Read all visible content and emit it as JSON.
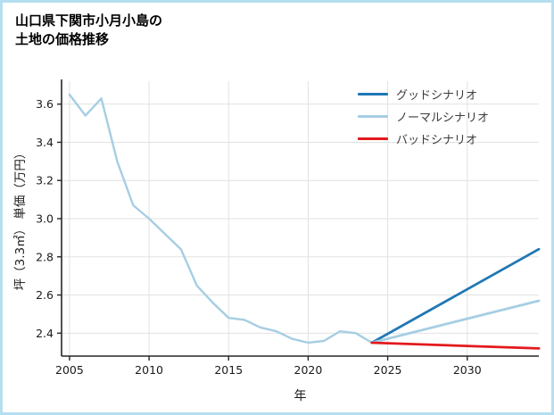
{
  "page": {
    "title_lines": [
      "山口県下関市小月小島の",
      "土地の価格推移"
    ],
    "border_color": "#b5dff0"
  },
  "chart_data": {
    "type": "line",
    "title": "山口県下関市小月小島の土地の価格推移",
    "xlabel": "年",
    "ylabel": "坪（3.3㎡） 単価（万円）",
    "xlim": [
      2004.5,
      2034.5
    ],
    "ylim": [
      2.28,
      3.72
    ],
    "xticks": [
      2005,
      2010,
      2015,
      2020,
      2025,
      2030
    ],
    "yticks": [
      2.4,
      2.6,
      2.8,
      3.0,
      3.2,
      3.4,
      3.6
    ],
    "ytick_labels": [
      "2.4",
      "2.6",
      "2.8",
      "3.0",
      "3.2",
      "3.4",
      "3.6"
    ],
    "grid": true,
    "legend_position": "upper right",
    "series": [
      {
        "id": "history",
        "color": "#a6cee3",
        "width": 2.4,
        "points": [
          [
            2005,
            3.65
          ],
          [
            2006,
            3.54
          ],
          [
            2007,
            3.63
          ],
          [
            2008,
            3.3
          ],
          [
            2009,
            3.07
          ],
          [
            2010,
            3.0
          ],
          [
            2011,
            2.92
          ],
          [
            2012,
            2.84
          ],
          [
            2013,
            2.65
          ],
          [
            2014,
            2.56
          ],
          [
            2015,
            2.48
          ],
          [
            2016,
            2.47
          ],
          [
            2017,
            2.43
          ],
          [
            2018,
            2.41
          ],
          [
            2019,
            2.37
          ],
          [
            2020,
            2.35
          ],
          [
            2021,
            2.36
          ],
          [
            2022,
            2.41
          ],
          [
            2023,
            2.4
          ],
          [
            2024,
            2.35
          ]
        ]
      },
      {
        "id": "good-scenario",
        "color": "#1f78b4",
        "width": 2.8,
        "points": [
          [
            2024,
            2.35
          ],
          [
            2034.5,
            2.84
          ]
        ]
      },
      {
        "id": "normal-scenario",
        "color": "#a6cee3",
        "width": 2.8,
        "points": [
          [
            2024,
            2.35
          ],
          [
            2034.5,
            2.57
          ]
        ]
      },
      {
        "id": "bad-scenario",
        "color": "#e31a1c",
        "width": 2.8,
        "points": [
          [
            2024,
            2.35
          ],
          [
            2034.5,
            2.32
          ]
        ]
      }
    ],
    "legend": [
      {
        "label": "グッドシナリオ",
        "color": "#1f78b4"
      },
      {
        "label": "ノーマルシナリオ",
        "color": "#a6cee3"
      },
      {
        "label": "バッドシナリオ",
        "color": "#e31a1c"
      }
    ]
  }
}
